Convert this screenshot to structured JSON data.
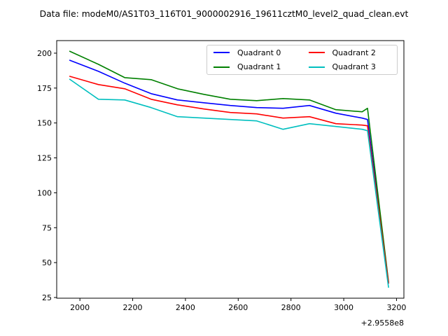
{
  "chart_data": {
    "type": "line",
    "title": "Data file: modeM0/AS1T03_116T01_9000002916_19611cztM0_level2_quad_clean.evt",
    "xlabel": "",
    "ylabel": "",
    "x_axis_offset_label": "+2.9558e8",
    "xlim": [
      1912,
      3228
    ],
    "ylim": [
      24.5,
      209
    ],
    "xticks": [
      2000,
      2200,
      2400,
      2600,
      2800,
      3000,
      3200
    ],
    "yticks": [
      25,
      50,
      75,
      100,
      125,
      150,
      175,
      200
    ],
    "grid": false,
    "legend_position": "upper right",
    "legend_columns": 2,
    "x": [
      1960,
      2070,
      2170,
      2270,
      2370,
      2470,
      2570,
      2670,
      2770,
      2870,
      2970,
      3070,
      3090,
      3170
    ],
    "series": [
      {
        "name": "Quadrant 0",
        "color": "#0000ff",
        "values": [
          195,
          187,
          178.5,
          171,
          166.5,
          164.5,
          162.5,
          161,
          160.5,
          162.5,
          157,
          153.5,
          152.5,
          35
        ]
      },
      {
        "name": "Quadrant 1",
        "color": "#008000",
        "values": [
          201.5,
          192,
          182.5,
          181,
          174.5,
          170.5,
          167,
          166,
          167.5,
          166.5,
          159.5,
          158,
          160.5,
          36
        ]
      },
      {
        "name": "Quadrant 2",
        "color": "#ff0000",
        "values": [
          183.5,
          177.5,
          174.5,
          167,
          163,
          160,
          157.5,
          156.5,
          153.5,
          154.5,
          149.5,
          148.5,
          148,
          35
        ]
      },
      {
        "name": "Quadrant 3",
        "color": "#00bfbf",
        "values": [
          181.5,
          167,
          166.5,
          161,
          154.5,
          153.5,
          152.5,
          151.5,
          145.5,
          149.5,
          147.5,
          145.5,
          144.5,
          32
        ]
      }
    ],
    "frame_color": "#000000",
    "background_color": "#ffffff"
  }
}
